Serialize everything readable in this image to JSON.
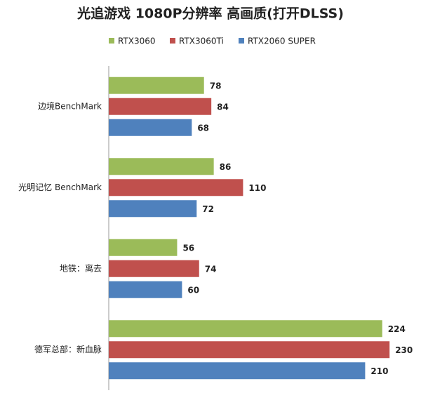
{
  "chart_data": {
    "type": "barh",
    "title": "光追游戏 1080P分辨率 高画质(打开DLSS)",
    "categories": [
      "边境BenchMark",
      "光明记忆 BenchMark",
      "地铁：离去",
      "德军总部：新血脉"
    ],
    "series": [
      {
        "name": "RTX3060",
        "color": "#9bbb59",
        "values": [
          78,
          86,
          56,
          224
        ]
      },
      {
        "name": "RTX3060Ti",
        "color": "#c0504d",
        "values": [
          84,
          110,
          74,
          230
        ]
      },
      {
        "name": "RTX2060 SUPER",
        "color": "#4f81bd",
        "values": [
          68,
          72,
          60,
          210
        ]
      }
    ],
    "xlim": [
      0,
      250
    ]
  }
}
